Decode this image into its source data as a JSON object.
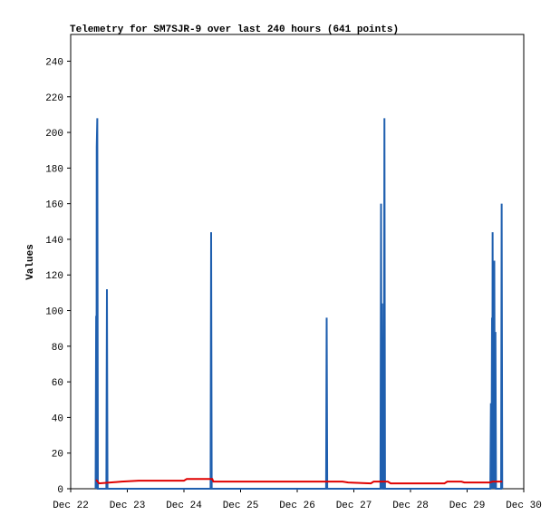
{
  "chart_data": {
    "type": "line",
    "title": "Telemetry for SM7SJR-9 over last 240 hours (641 points)",
    "y_label": "Values",
    "xlim": [
      0,
      8
    ],
    "xticks": [
      {
        "value": 0,
        "label": "Dec 22"
      },
      {
        "value": 1,
        "label": "Dec 23"
      },
      {
        "value": 2,
        "label": "Dec 24"
      },
      {
        "value": 3,
        "label": "Dec 25"
      },
      {
        "value": 4,
        "label": "Dec 26"
      },
      {
        "value": 5,
        "label": "Dec 27"
      },
      {
        "value": 6,
        "label": "Dec 28"
      },
      {
        "value": 7,
        "label": "Dec 29"
      },
      {
        "value": 8,
        "label": "Dec 30"
      }
    ],
    "ylim": [
      0,
      255
    ],
    "yticks": [
      0,
      20,
      40,
      60,
      80,
      100,
      120,
      140,
      160,
      180,
      200,
      220,
      240
    ],
    "series": [
      {
        "color": "#1f5faf",
        "x": [
          0.44,
          0.45,
          0.455,
          0.46,
          0.47,
          0.48,
          0.63,
          0.64,
          0.65,
          2.47,
          2.48,
          2.49,
          4.51,
          4.52,
          4.53,
          5.47,
          5.48,
          5.49,
          5.5,
          5.51,
          5.53,
          5.54,
          5.55,
          7.41,
          7.42,
          7.43,
          7.44,
          7.445,
          7.45,
          7.46,
          7.48,
          7.49,
          7.5,
          7.51,
          7.6,
          7.61,
          7.62
        ],
        "values": [
          0,
          97,
          0,
          192,
          208,
          0,
          0,
          112,
          0,
          0,
          144,
          0,
          0,
          96,
          0,
          0,
          160,
          0,
          104,
          0,
          0,
          208,
          0,
          0,
          48,
          0,
          96,
          0,
          144,
          0,
          128,
          0,
          88,
          0,
          0,
          160,
          0
        ]
      },
      {
        "color": "#e00000",
        "x": [
          0.45,
          0.5,
          0.9,
          1.2,
          2.0,
          2.05,
          2.5,
          2.52,
          4.8,
          4.9,
          5.3,
          5.35,
          5.6,
          5.65,
          6.6,
          6.65,
          6.9,
          6.95,
          7.4,
          7.45,
          7.62
        ],
        "values": [
          5,
          3,
          4,
          4.5,
          4.5,
          5.5,
          5.5,
          4,
          4,
          3.5,
          3,
          4,
          4,
          3,
          3,
          4,
          4,
          3.5,
          3.5,
          4,
          4
        ]
      }
    ]
  }
}
